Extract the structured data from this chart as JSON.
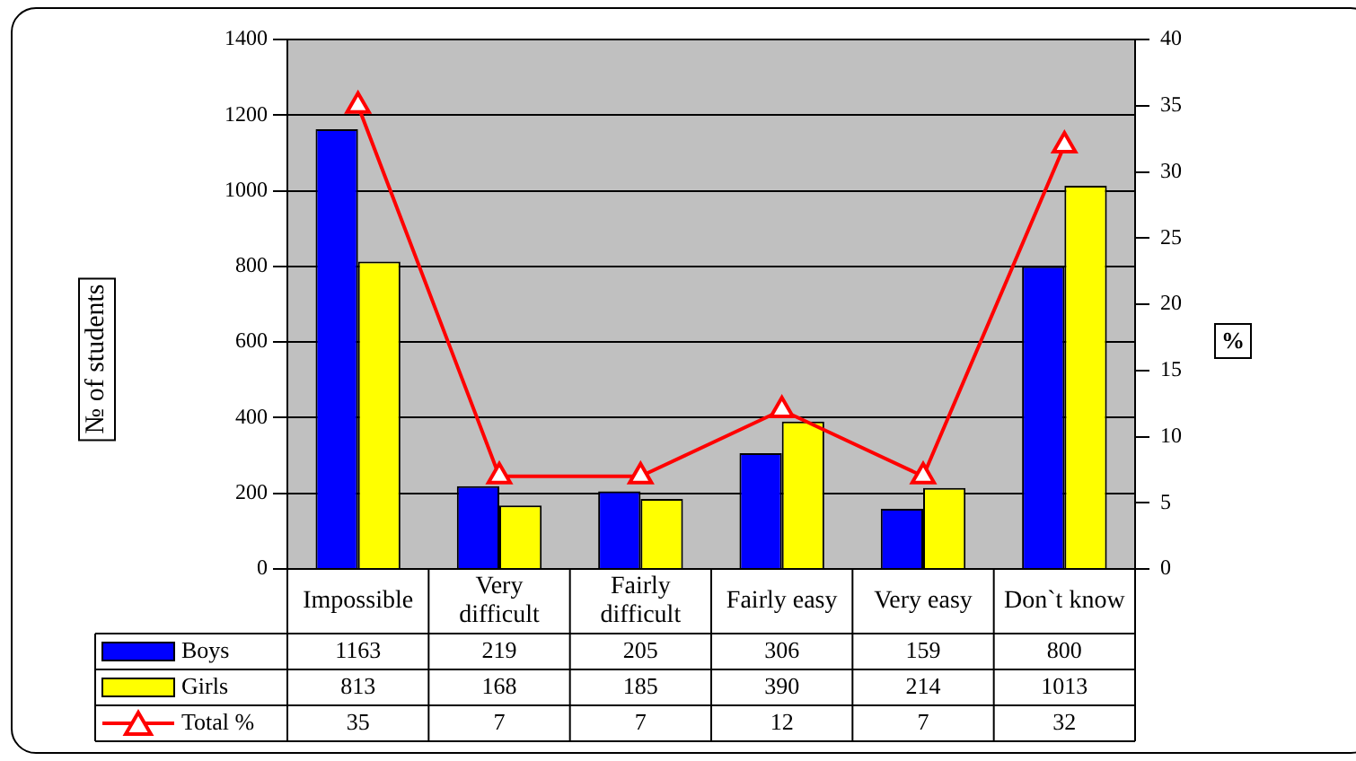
{
  "chart_data": {
    "type": "bar",
    "categories": [
      "Impossible",
      "Very difficult",
      "Fairly difficult",
      "Fairly easy",
      "Very easy",
      "Don`t know"
    ],
    "series": [
      {
        "name": "Boys",
        "color": "#0000ff",
        "values": [
          1163,
          219,
          205,
          306,
          159,
          800
        ]
      },
      {
        "name": "Girls",
        "color": "#ffff00",
        "values": [
          813,
          168,
          185,
          390,
          214,
          1013
        ]
      },
      {
        "name": "Total %",
        "type": "line",
        "axis": "y2",
        "color": "#ff0000",
        "marker": "triangle",
        "values": [
          35,
          7,
          7,
          12,
          7,
          32
        ]
      }
    ],
    "ylabel": "№ of students",
    "y2label": "%",
    "ylim": [
      0,
      1400
    ],
    "yticks": [
      0,
      200,
      400,
      600,
      800,
      1000,
      1200,
      1400
    ],
    "y2lim": [
      0,
      40
    ],
    "y2ticks": [
      0,
      5,
      10,
      15,
      20,
      25,
      30,
      35,
      40
    ],
    "grid": "y",
    "legend": "bottom left",
    "data_labels": true
  }
}
